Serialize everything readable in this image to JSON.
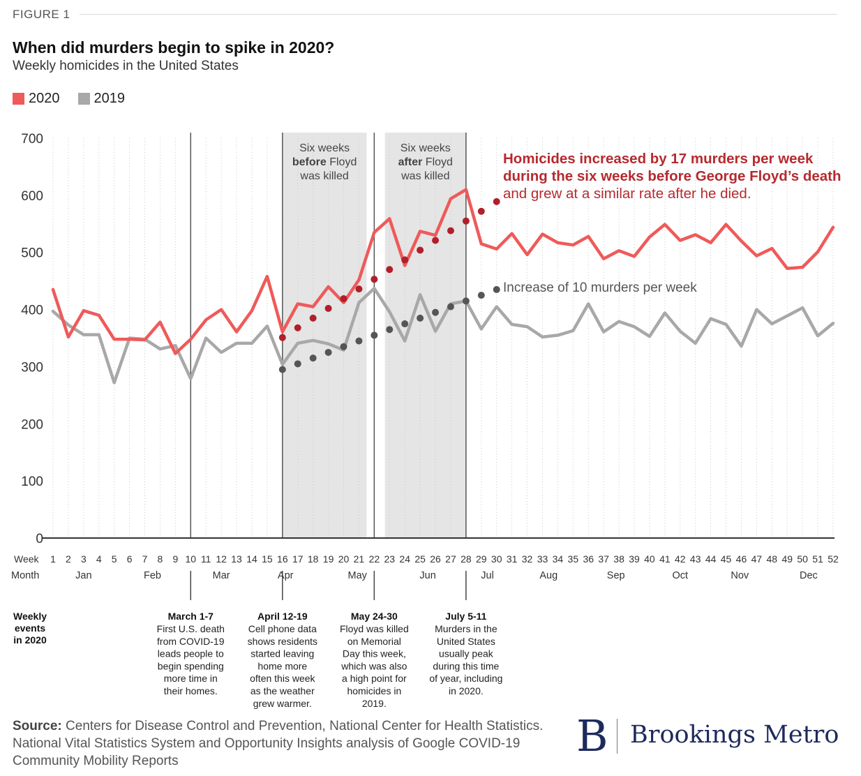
{
  "header": {
    "figure_label": "FIGURE 1",
    "title": "When did murders begin to spike in 2020?",
    "subtitle": "Weekly homicides in the United States"
  },
  "legend": [
    {
      "label": "2020",
      "color": "#ef5a5a"
    },
    {
      "label": "2019",
      "color": "#a8a8a8"
    }
  ],
  "chart_data": {
    "type": "line",
    "x_label": "Week",
    "month_label": "Month",
    "ylim": [
      0,
      700
    ],
    "y_ticks": [
      0,
      100,
      200,
      300,
      400,
      500,
      600,
      700
    ],
    "x": [
      1,
      2,
      3,
      4,
      5,
      6,
      7,
      8,
      9,
      10,
      11,
      12,
      13,
      14,
      15,
      16,
      17,
      18,
      19,
      20,
      21,
      22,
      23,
      24,
      25,
      26,
      27,
      28,
      29,
      30,
      31,
      32,
      33,
      34,
      35,
      36,
      37,
      38,
      39,
      40,
      41,
      42,
      43,
      44,
      45,
      46,
      47,
      48,
      49,
      50,
      51,
      52
    ],
    "months": [
      {
        "label": "Jan",
        "week": 3
      },
      {
        "label": "Feb",
        "week": 7.5
      },
      {
        "label": "Mar",
        "week": 12
      },
      {
        "label": "Apr",
        "week": 16.2
      },
      {
        "label": "May",
        "week": 20.9
      },
      {
        "label": "Jun",
        "week": 25.5
      },
      {
        "label": "Jul",
        "week": 29.4
      },
      {
        "label": "Aug",
        "week": 33.4
      },
      {
        "label": "Sep",
        "week": 37.8
      },
      {
        "label": "Oct",
        "week": 42
      },
      {
        "label": "Nov",
        "week": 45.9
      },
      {
        "label": "Dec",
        "week": 50.4
      }
    ],
    "series": [
      {
        "name": "2020",
        "color": "#ef5a5a",
        "values": [
          435,
          352,
          398,
          390,
          348,
          348,
          347,
          378,
          323,
          348,
          382,
          400,
          361,
          398,
          458,
          361,
          410,
          405,
          440,
          412,
          452,
          535,
          559,
          477,
          537,
          530,
          594,
          610,
          515,
          506,
          533,
          496,
          532,
          517,
          513,
          528,
          489,
          503,
          493,
          527,
          549,
          521,
          531,
          517,
          549,
          520,
          494,
          507,
          472,
          474,
          501,
          544
        ]
      },
      {
        "name": "2019",
        "color": "#a8a8a8",
        "values": [
          397,
          373,
          356,
          356,
          272,
          350,
          348,
          331,
          337,
          279,
          350,
          325,
          341,
          341,
          371,
          304,
          341,
          346,
          340,
          329,
          412,
          437,
          396,
          345,
          426,
          362,
          410,
          415,
          366,
          405,
          374,
          370,
          352,
          355,
          363,
          410,
          361,
          379,
          370,
          353,
          394,
          362,
          341,
          384,
          374,
          336,
          400,
          375,
          389,
          403,
          354,
          376
        ]
      }
    ],
    "trend_lines": [
      {
        "name": "2020 trend",
        "color": "#b0202a",
        "weeks": [
          16,
          17,
          18,
          19,
          20,
          21,
          22,
          23,
          24,
          25,
          26,
          27,
          28,
          29,
          30
        ],
        "values": [
          351,
          368,
          385,
          402,
          419,
          436,
          453,
          470,
          487,
          504,
          521,
          538,
          555,
          572,
          589
        ]
      },
      {
        "name": "2019 trend",
        "color": "#555555",
        "weeks": [
          16,
          17,
          18,
          19,
          20,
          21,
          22,
          23,
          24,
          25,
          26,
          27,
          28,
          29,
          30
        ],
        "values": [
          295,
          305,
          315,
          325,
          335,
          345,
          355,
          365,
          375,
          385,
          395,
          405,
          415,
          425,
          435
        ]
      }
    ],
    "shaded_regions": [
      {
        "from_week": 16,
        "to_week": 21.5,
        "lines": [
          [
            {
              "t": "Six weeks",
              "b": false
            }
          ],
          [
            {
              "t": "before",
              "b": true
            },
            {
              "t": " Floyd",
              "b": false
            }
          ],
          [
            {
              "t": "was killed",
              "b": false
            }
          ]
        ]
      },
      {
        "from_week": 22.7,
        "to_week": 28,
        "lines": [
          [
            {
              "t": "Six weeks",
              "b": false
            }
          ],
          [
            {
              "t": "after",
              "b": true
            },
            {
              "t": " Floyd",
              "b": false
            }
          ],
          [
            {
              "t": "was killed",
              "b": false
            }
          ]
        ]
      }
    ],
    "vertical_markers": [
      10,
      16,
      22,
      28
    ],
    "annotations": {
      "red": {
        "line1": "Homicides increased by 17 murders per week",
        "line2": "during the six weeks before George Floyd’s death",
        "line3": "and grew at a similar rate after he died."
      },
      "gray": "Increase of 10 murders per week"
    },
    "events_label": [
      "Weekly",
      "events",
      "in 2020"
    ],
    "events": [
      {
        "week": 10,
        "title": "March 1-7",
        "lines": [
          "First U.S. death",
          "from COVID-19",
          "leads people to",
          "begin spending",
          "more time in",
          "their homes."
        ]
      },
      {
        "week": 16,
        "title": "April 12-19",
        "lines": [
          "Cell phone data",
          "shows residents",
          "started leaving",
          "home more",
          "often this week",
          "as the weather",
          "grew warmer."
        ]
      },
      {
        "week": 22,
        "title": "May 24-30",
        "lines": [
          "Floyd was killed",
          "on Memorial",
          "Day this week,",
          "which was also",
          "a high point for",
          "homicides in",
          "2019."
        ]
      },
      {
        "week": 28,
        "title": "July 5-11",
        "lines": [
          "Murders in the",
          "United States",
          "usually peak",
          "during this time",
          "of year, including",
          "in 2020."
        ]
      }
    ]
  },
  "footer": {
    "source_label": "Source:",
    "source_text": " Centers for Disease Control and Prevention, National Center for Health Statistics. National Vital Statistics System and Opportunity Insights analysis of Google COVID-19 Community Mobility Reports",
    "logo_mark": "B",
    "logo_text": "Brookings Metro"
  }
}
